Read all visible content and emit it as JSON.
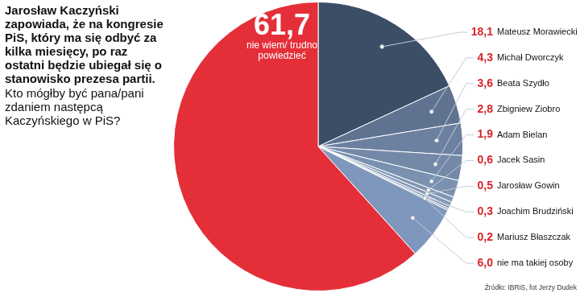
{
  "chart_data": {
    "type": "pie",
    "title": "Jarosław Kaczyński zapowiada, że na kongresie PiS, który ma się odbyć za kilka miesięcy, po raz ostatni będzie ubiegał się o stanowisko prezesa partii.",
    "subtitle": "Kto mógłby być pana/pani zdaniem następcą Kaczyńskiego w PiS?",
    "source": "Źródło: IBRiS, fot Jerzy Dudek",
    "categories": [
      "Mateusz Morawiecki",
      "Michał Dworczyk",
      "Beata Szydło",
      "Zbigniew Ziobro",
      "Adam Bielan",
      "Jacek Sasin",
      "Jarosław Gowin",
      "Joachim Brudziński",
      "Mariusz Błaszczak",
      "nie ma takiej osoby",
      "nie wiem/ trudno powiedzieć"
    ],
    "values": [
      18.1,
      4.3,
      3.6,
      2.8,
      1.9,
      0.6,
      0.5,
      0.3,
      0.2,
      6.0,
      61.7
    ],
    "value_labels": [
      "18,1",
      "4,3",
      "3,6",
      "2,8",
      "1,9",
      "0,6",
      "0,5",
      "0,3",
      "0,2",
      "6,0",
      "61,7"
    ],
    "colors": [
      "#3c4d66",
      "#5f7391",
      "#6c81a0",
      "#7489a8",
      "#7b91b0",
      "#8196b4",
      "#8599b6",
      "#889cb9",
      "#8b9fbb",
      "#7f97bc",
      "#e42f39"
    ],
    "data_labels": true
  }
}
